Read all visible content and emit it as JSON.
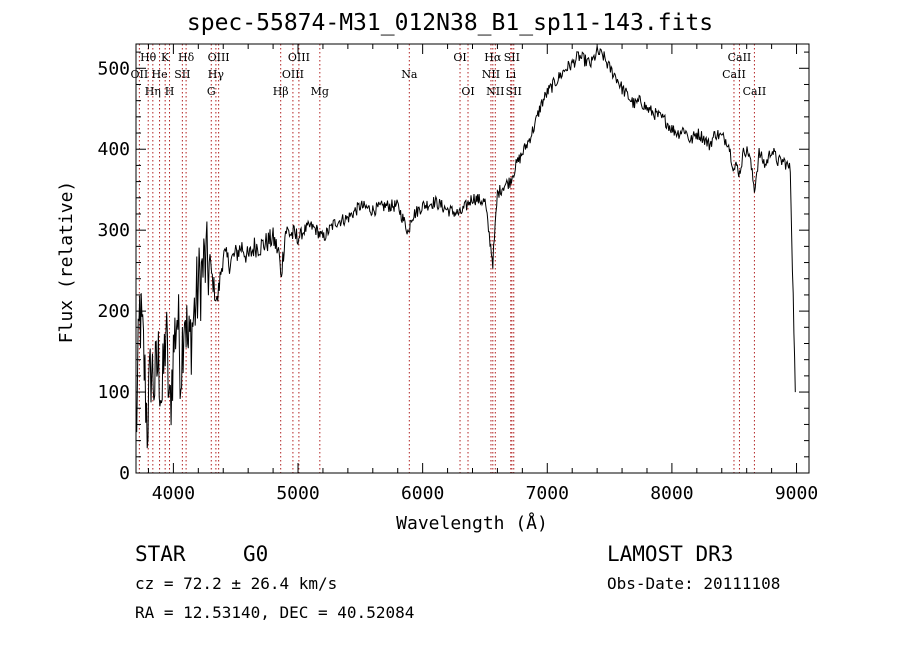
{
  "header": {
    "title": "spec-55874-M31_012N38_B1_sp11-143.fits"
  },
  "info": {
    "class": "STAR",
    "subclass": "G0",
    "survey": "LAMOST DR3",
    "cz": "cz = 72.2 ± 26.4 km/s",
    "obs_date": "Obs-Date: 20111108",
    "radec": "RA =  12.53140, DEC =  40.52084"
  },
  "colors": {
    "line": "#000000",
    "marker": "#b22222",
    "axis": "#000000"
  },
  "chart_data": {
    "type": "line",
    "title": "spec-55874-M31_012N38_B1_sp11-143.fits",
    "xlabel": "Wavelength (Å)",
    "ylabel": "Flux (relative)",
    "xlim": [
      3700,
      9100
    ],
    "ylim": [
      0,
      530
    ],
    "xticks": [
      4000,
      5000,
      6000,
      7000,
      8000,
      9000
    ],
    "xtick_labels": [
      "4000",
      "5000",
      "6000",
      "7000",
      "8000",
      "9000"
    ],
    "yticks": [
      0,
      100,
      200,
      300,
      400,
      500
    ],
    "ytick_labels": [
      "0",
      "100",
      "200",
      "300",
      "400",
      "500"
    ],
    "series": [
      {
        "name": "spectrum",
        "x": [
          3700,
          3730,
          3760,
          3790,
          3820,
          3850,
          3880,
          3910,
          3940,
          3970,
          4000,
          4030,
          4060,
          4090,
          4120,
          4150,
          4200,
          4250,
          4300,
          4350,
          4400,
          4450,
          4500,
          4550,
          4600,
          4650,
          4700,
          4750,
          4800,
          4850,
          4861,
          4900,
          4950,
          5000,
          5050,
          5100,
          5150,
          5200,
          5300,
          5400,
          5500,
          5600,
          5700,
          5800,
          5893,
          5900,
          6000,
          6100,
          6200,
          6300,
          6400,
          6500,
          6563,
          6600,
          6650,
          6700,
          6750,
          6800,
          6850,
          6900,
          6950,
          7000,
          7050,
          7100,
          7150,
          7200,
          7250,
          7300,
          7350,
          7400,
          7450,
          7500,
          7550,
          7600,
          7650,
          7700,
          7750,
          7800,
          7850,
          7900,
          7950,
          8000,
          8050,
          8100,
          8150,
          8200,
          8250,
          8300,
          8350,
          8400,
          8450,
          8498,
          8520,
          8542,
          8580,
          8620,
          8662,
          8700,
          8750,
          8800,
          8850,
          8900,
          8950,
          8990
        ],
        "y": [
          40,
          200,
          150,
          60,
          130,
          110,
          140,
          90,
          180,
          70,
          150,
          200,
          130,
          210,
          150,
          180,
          230,
          260,
          250,
          210,
          270,
          260,
          270,
          280,
          265,
          280,
          280,
          285,
          290,
          270,
          240,
          300,
          295,
          290,
          300,
          305,
          300,
          290,
          310,
          315,
          330,
          325,
          330,
          330,
          295,
          315,
          330,
          335,
          325,
          320,
          340,
          335,
          260,
          345,
          355,
          360,
          380,
          395,
          410,
          430,
          455,
          470,
          480,
          490,
          500,
          505,
          515,
          510,
          505,
          520,
          515,
          500,
          490,
          475,
          465,
          455,
          460,
          450,
          445,
          440,
          435,
          425,
          420,
          425,
          410,
          420,
          415,
          405,
          420,
          415,
          410,
          375,
          380,
          370,
          400,
          395,
          350,
          395,
          380,
          400,
          385,
          385,
          375,
          100
        ]
      }
    ],
    "line_markers": [
      {
        "wavelength": 3727,
        "label": "OII",
        "row": 2
      },
      {
        "wavelength": 3798,
        "label": "Hθ",
        "row": 1
      },
      {
        "wavelength": 3835,
        "label": "Hη",
        "row": 3
      },
      {
        "wavelength": 3889,
        "label": "He",
        "row": 2
      },
      {
        "wavelength": 3934,
        "label": "K",
        "row": 1
      },
      {
        "wavelength": 3969,
        "label": "H",
        "row": 3
      },
      {
        "wavelength": 4072,
        "label": "SII",
        "row": 2
      },
      {
        "wavelength": 4102,
        "label": "Hδ",
        "row": 1
      },
      {
        "wavelength": 4304,
        "label": "G",
        "row": 3
      },
      {
        "wavelength": 4341,
        "label": "Hγ",
        "row": 2
      },
      {
        "wavelength": 4363,
        "label": "OIII",
        "row": 1
      },
      {
        "wavelength": 4861,
        "label": "Hβ",
        "row": 3
      },
      {
        "wavelength": 4959,
        "label": "OIII",
        "row": 2
      },
      {
        "wavelength": 5007,
        "label": "OIII",
        "row": 1
      },
      {
        "wavelength": 5175,
        "label": "Mg",
        "row": 3
      },
      {
        "wavelength": 5893,
        "label": "Na",
        "row": 2
      },
      {
        "wavelength": 6300,
        "label": "OI",
        "row": 1
      },
      {
        "wavelength": 6364,
        "label": "OI",
        "row": 3
      },
      {
        "wavelength": 6548,
        "label": "NII",
        "row": 2
      },
      {
        "wavelength": 6563,
        "label": "Hα",
        "row": 1
      },
      {
        "wavelength": 6583,
        "label": "NII",
        "row": 3
      },
      {
        "wavelength": 6707,
        "label": "Li",
        "row": 2
      },
      {
        "wavelength": 6716,
        "label": "SII",
        "row": 1
      },
      {
        "wavelength": 6731,
        "label": "SII",
        "row": 3
      },
      {
        "wavelength": 8498,
        "label": "CaII",
        "row": 2
      },
      {
        "wavelength": 8542,
        "label": "CaII",
        "row": 1
      },
      {
        "wavelength": 8662,
        "label": "CaII",
        "row": 3
      }
    ]
  }
}
